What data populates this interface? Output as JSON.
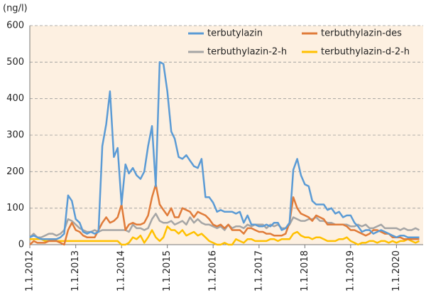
{
  "chart_data": {
    "type": "line",
    "y_label": "(ng/l)",
    "x": [
      "2012-01",
      "2012-02",
      "2012-03",
      "2012-04",
      "2012-05",
      "2012-06",
      "2012-07",
      "2012-08",
      "2012-09",
      "2012-10",
      "2012-11",
      "2012-12",
      "2013-01",
      "2013-02",
      "2013-03",
      "2013-04",
      "2013-05",
      "2013-06",
      "2013-07",
      "2013-08",
      "2013-09",
      "2013-10",
      "2013-11",
      "2013-12",
      "2014-01",
      "2014-02",
      "2014-03",
      "2014-04",
      "2014-05",
      "2014-06",
      "2014-07",
      "2014-08",
      "2014-09",
      "2014-10",
      "2014-11",
      "2014-12",
      "2015-01",
      "2015-02",
      "2015-03",
      "2015-04",
      "2015-05",
      "2015-06",
      "2015-07",
      "2015-08",
      "2015-09",
      "2015-10",
      "2015-11",
      "2015-12",
      "2016-01",
      "2016-02",
      "2016-03",
      "2016-04",
      "2016-05",
      "2016-06",
      "2016-07",
      "2016-08",
      "2016-09",
      "2016-10",
      "2016-11",
      "2016-12",
      "2017-01",
      "2017-02",
      "2017-03",
      "2017-04",
      "2017-05",
      "2017-06",
      "2017-07",
      "2017-08",
      "2017-09",
      "2017-10",
      "2017-11",
      "2017-12",
      "2018-01",
      "2018-02",
      "2018-03",
      "2018-04",
      "2018-05",
      "2018-06",
      "2018-07",
      "2018-08",
      "2018-09",
      "2018-10",
      "2018-11",
      "2018-12",
      "2019-01",
      "2019-02",
      "2019-03",
      "2019-04",
      "2019-05",
      "2019-06",
      "2019-07",
      "2019-08",
      "2019-09",
      "2019-10",
      "2019-11",
      "2019-12",
      "2020-01",
      "2020-02",
      "2020-03",
      "2020-04",
      "2020-05",
      "2020-06",
      "2020-07"
    ],
    "series": [
      {
        "name": "terbutylazin",
        "color": "#5b9bd5",
        "values": [
          20,
          25,
          20,
          15,
          15,
          15,
          15,
          15,
          20,
          30,
          135,
          120,
          70,
          60,
          35,
          30,
          35,
          30,
          35,
          270,
          330,
          420,
          240,
          265,
          110,
          220,
          195,
          210,
          190,
          180,
          200,
          270,
          325,
          160,
          500,
          495,
          420,
          310,
          290,
          240,
          235,
          245,
          230,
          215,
          210,
          235,
          130,
          130,
          115,
          90,
          95,
          90,
          90,
          90,
          85,
          90,
          60,
          80,
          55,
          55,
          50,
          50,
          55,
          50,
          60,
          60,
          40,
          45,
          60,
          205,
          235,
          190,
          165,
          160,
          120,
          110,
          110,
          110,
          95,
          100,
          85,
          90,
          75,
          80,
          80,
          60,
          50,
          35,
          40,
          40,
          30,
          35,
          40,
          35,
          30,
          25,
          20,
          25,
          25,
          20,
          20,
          20,
          20
        ]
      },
      {
        "name": "terbuthylazin-des",
        "color": "#e07b39",
        "values": [
          0,
          10,
          5,
          5,
          5,
          10,
          10,
          10,
          5,
          0,
          40,
          60,
          40,
          35,
          25,
          20,
          20,
          20,
          40,
          60,
          75,
          60,
          65,
          75,
          110,
          40,
          55,
          60,
          55,
          55,
          60,
          80,
          130,
          165,
          110,
          95,
          80,
          100,
          75,
          75,
          100,
          95,
          90,
          75,
          90,
          85,
          80,
          70,
          55,
          50,
          55,
          45,
          55,
          40,
          40,
          40,
          30,
          45,
          45,
          40,
          35,
          35,
          30,
          30,
          25,
          25,
          25,
          30,
          60,
          130,
          100,
          85,
          80,
          75,
          65,
          80,
          75,
          70,
          55,
          55,
          55,
          55,
          55,
          50,
          40,
          40,
          35,
          30,
          25,
          30,
          40,
          40,
          35,
          30,
          30,
          20,
          20,
          20,
          15,
          15,
          15,
          15,
          15
        ]
      },
      {
        "name": "terbuthylazin-2-h",
        "color": "#a5a5a5",
        "values": [
          20,
          30,
          20,
          20,
          25,
          30,
          30,
          25,
          30,
          40,
          70,
          65,
          55,
          45,
          40,
          35,
          35,
          40,
          35,
          40,
          40,
          40,
          40,
          40,
          40,
          40,
          35,
          55,
          45,
          45,
          40,
          45,
          70,
          85,
          65,
          60,
          60,
          65,
          55,
          60,
          65,
          55,
          75,
          60,
          70,
          60,
          55,
          55,
          50,
          45,
          50,
          40,
          55,
          45,
          50,
          50,
          45,
          55,
          50,
          55,
          55,
          55,
          45,
          55,
          50,
          55,
          45,
          45,
          55,
          75,
          70,
          65,
          65,
          70,
          70,
          75,
          65,
          65,
          60,
          60,
          55,
          55,
          55,
          55,
          50,
          50,
          55,
          50,
          55,
          45,
          45,
          50,
          55,
          45,
          45,
          45,
          45,
          40,
          45,
          40,
          40,
          45,
          40
        ]
      },
      {
        "name": "terbuthylazin-d-2-h",
        "color": "#ffc000",
        "values": [
          15,
          15,
          15,
          15,
          10,
          10,
          10,
          10,
          10,
          10,
          10,
          10,
          10,
          10,
          10,
          10,
          10,
          10,
          10,
          10,
          10,
          10,
          10,
          10,
          0,
          0,
          5,
          20,
          15,
          25,
          5,
          20,
          40,
          20,
          10,
          20,
          50,
          40,
          40,
          30,
          40,
          25,
          30,
          35,
          25,
          30,
          20,
          10,
          5,
          0,
          0,
          5,
          0,
          0,
          15,
          10,
          5,
          15,
          15,
          10,
          10,
          10,
          10,
          15,
          15,
          10,
          15,
          15,
          15,
          30,
          35,
          25,
          20,
          20,
          15,
          20,
          20,
          15,
          10,
          10,
          10,
          15,
          15,
          20,
          10,
          5,
          0,
          5,
          5,
          10,
          10,
          5,
          10,
          10,
          5,
          10,
          5,
          10,
          10,
          15,
          10,
          5,
          10
        ]
      }
    ],
    "xlim": [
      "2012-01-01",
      "2020-08-01"
    ],
    "xticks": [
      {
        "value": "2012-01-01",
        "label": "1.1.2012"
      },
      {
        "value": "2013-01-01",
        "label": "1.1.2013"
      },
      {
        "value": "2014-01-01",
        "label": "1.1.2014"
      },
      {
        "value": "2015-01-01",
        "label": "1.1.2015"
      },
      {
        "value": "2016-01-01",
        "label": "1.1.2016"
      },
      {
        "value": "2017-01-01",
        "label": "1.1.2017"
      },
      {
        "value": "2018-01-01",
        "label": "1.1.2018"
      },
      {
        "value": "2019-01-01",
        "label": "1.1.2019"
      },
      {
        "value": "2020-01-01",
        "label": "1.1.2020"
      }
    ],
    "ylim": [
      0,
      600
    ],
    "yticks": [
      0,
      100,
      200,
      300,
      400,
      500,
      600
    ],
    "grid": true
  }
}
